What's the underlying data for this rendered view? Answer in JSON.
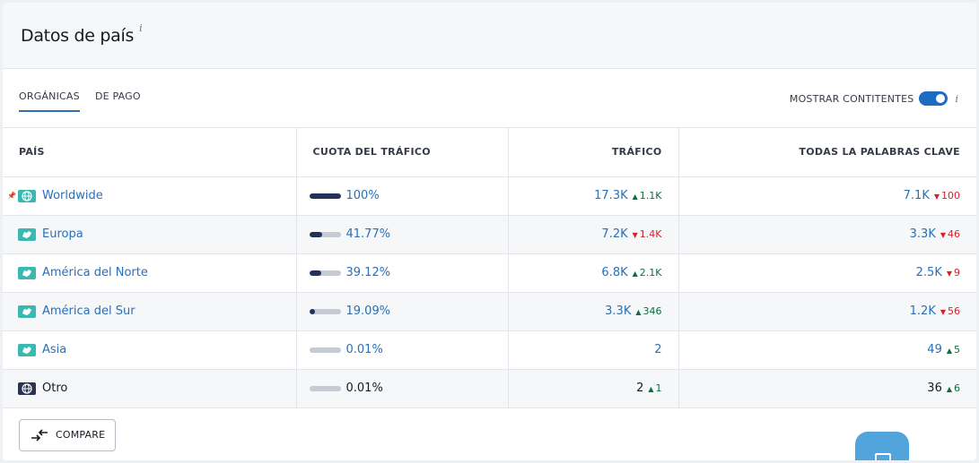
{
  "title": "Datos de país",
  "title_info": "i",
  "tabs": [
    {
      "label": "ORGÁNICAS",
      "active": true
    },
    {
      "label": "DE PAGO",
      "active": false
    }
  ],
  "toggle": {
    "label": "MOSTRAR CONTITENTES",
    "on": true,
    "info": "i"
  },
  "columns": [
    "PAÍS",
    "CUOTA DEL TRÁFICO",
    "TRÁFICO",
    "TODAS LA PALABRAS CLAVE"
  ],
  "rows": [
    {
      "pinned": true,
      "icon": "globe-icon",
      "name": "Worldwide",
      "share": "100%",
      "share_value": 100,
      "traffic": "17.3K",
      "traffic_delta": "1.1K",
      "traffic_dir": "up",
      "keywords": "7.1K",
      "kw_delta": "100",
      "kw_dir": "down"
    },
    {
      "pinned": false,
      "icon": "europe-map-icon",
      "name": "Europa",
      "share": "41.77%",
      "share_value": 41.77,
      "traffic": "7.2K",
      "traffic_delta": "1.4K",
      "traffic_dir": "down",
      "keywords": "3.3K",
      "kw_delta": "46",
      "kw_dir": "down"
    },
    {
      "pinned": false,
      "icon": "north-america-map-icon",
      "name": "América del Norte",
      "share": "39.12%",
      "share_value": 39.12,
      "traffic": "6.8K",
      "traffic_delta": "2.1K",
      "traffic_dir": "up",
      "keywords": "2.5K",
      "kw_delta": "9",
      "kw_dir": "down"
    },
    {
      "pinned": false,
      "icon": "south-america-map-icon",
      "name": "América del Sur",
      "share": "19.09%",
      "share_value": 19.09,
      "traffic": "3.3K",
      "traffic_delta": "346",
      "traffic_dir": "up",
      "keywords": "1.2K",
      "kw_delta": "56",
      "kw_dir": "down"
    },
    {
      "pinned": false,
      "icon": "asia-map-icon",
      "name": "Asia",
      "share": "0.01%",
      "share_value": 0.01,
      "traffic": "2",
      "traffic_delta": "",
      "traffic_dir": "",
      "keywords": "49",
      "kw_delta": "5",
      "kw_dir": "up"
    },
    {
      "pinned": false,
      "icon": "globe-icon",
      "name": "Otro",
      "share": "0.01%",
      "share_value": 0.01,
      "traffic": "2",
      "traffic_delta": "1",
      "traffic_dir": "up",
      "keywords": "36",
      "kw_delta": "6",
      "kw_dir": "up"
    }
  ],
  "compare_label": "COMPARE",
  "colors": {
    "accent": "#2b6fb5",
    "toggle": "#1e6bc4",
    "bar_fill": "#23305a",
    "flag": "#3ab8b2",
    "up": "#0d6e41",
    "down": "#d1232c"
  }
}
